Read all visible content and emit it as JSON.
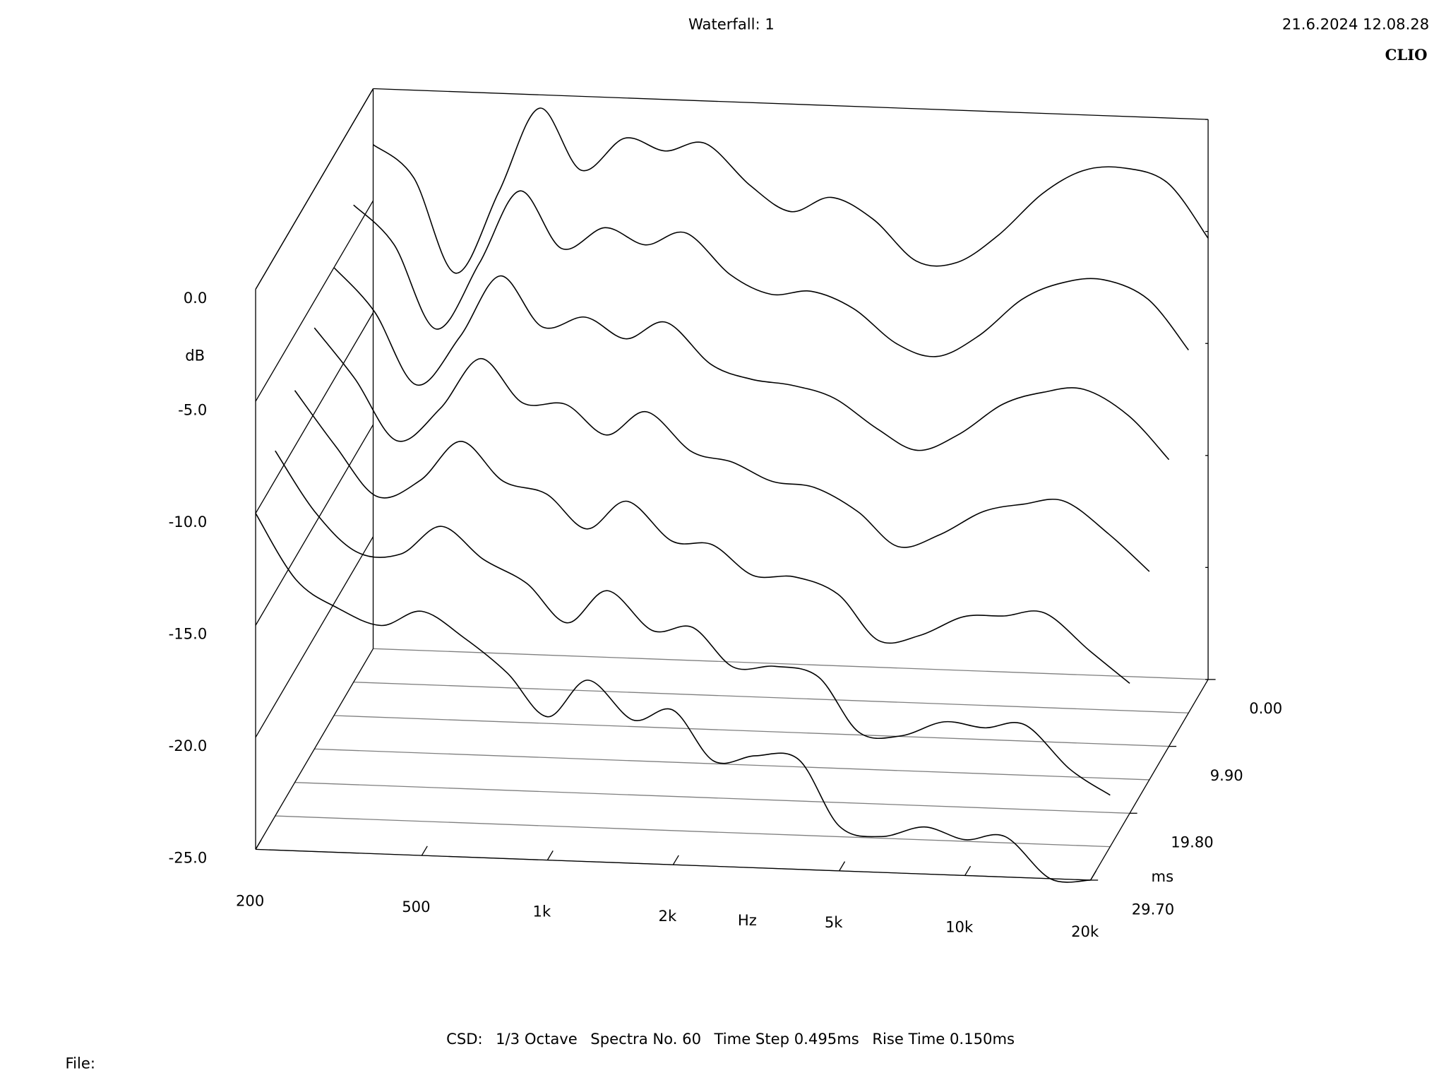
{
  "chart_data": {
    "type": "waterfall",
    "title": "Waterfall: 1",
    "timestamp": "21.6.2024 12.08.28",
    "brand": "CLIO",
    "xlabel": "Hz",
    "ylabel": "dB",
    "zlabel": "ms",
    "x_scale": "log",
    "color": "#000000",
    "x": [
      200,
      250,
      315,
      400,
      500,
      630,
      800,
      1000,
      1250,
      1600,
      2000,
      2500,
      3150,
      4000,
      5000,
      6300,
      8000,
      10000,
      12500,
      16000,
      20000
    ],
    "xlim": [
      200,
      20000
    ],
    "xticks": [
      200,
      500,
      {
        "value": 1000,
        "label": "1k"
      },
      {
        "value": 2000,
        "label": "2k"
      },
      {
        "value": 5000,
        "label": "5k"
      },
      {
        "value": 10000,
        "label": "10k"
      },
      {
        "value": 20000,
        "label": "20k"
      }
    ],
    "ylim": [
      -25,
      0
    ],
    "yticks": [
      {
        "value": 0,
        "label": "0.0"
      },
      {
        "value": -5,
        "label": "-5.0"
      },
      {
        "value": -10,
        "label": "-10.0"
      },
      {
        "value": -15,
        "label": "-15.0"
      },
      {
        "value": -20,
        "label": "-20.0"
      },
      {
        "value": -25,
        "label": "-25.0"
      }
    ],
    "zlim": [
      0,
      29.7
    ],
    "zticks": [
      {
        "value": 0,
        "label": "0.00"
      },
      {
        "value": 9.9,
        "label": "9.90"
      },
      {
        "value": 19.8,
        "label": "19.80"
      },
      {
        "value": 29.7,
        "label": "29.70"
      }
    ],
    "slices": [
      {
        "time": 0,
        "values": [
          -2.5,
          -3.9,
          -8.1,
          -4.4,
          -0.6,
          -3.3,
          -1.8,
          -2.3,
          -1.9,
          -3.7,
          -4.8,
          -4.1,
          -5.0,
          -6.8,
          -6.8,
          -5.5,
          -3.6,
          -2.5,
          -2.3,
          -2.9,
          -5.3
        ]
      },
      {
        "time": 4.95,
        "values": [
          -3.7,
          -5.4,
          -9.1,
          -6.1,
          -2.8,
          -5.3,
          -4.3,
          -5.0,
          -4.4,
          -6.2,
          -7.0,
          -6.8,
          -7.5,
          -9.0,
          -9.5,
          -8.5,
          -6.8,
          -6.0,
          -5.8,
          -6.6,
          -8.8
        ]
      },
      {
        "time": 9.9,
        "values": [
          -5.0,
          -6.9,
          -10.1,
          -7.9,
          -5.1,
          -7.3,
          -6.8,
          -7.7,
          -6.9,
          -8.7,
          -9.3,
          -9.5,
          -10.0,
          -11.3,
          -12.2,
          -11.4,
          -10.0,
          -9.4,
          -9.2,
          -10.3,
          -12.2
        ]
      },
      {
        "time": 14.85,
        "values": [
          -6.2,
          -8.4,
          -11.1,
          -9.6,
          -7.3,
          -9.2,
          -9.2,
          -10.5,
          -9.4,
          -11.1,
          -11.5,
          -12.3,
          -12.5,
          -13.5,
          -15.0,
          -14.4,
          -13.3,
          -12.9,
          -12.7,
          -14.1,
          -15.7
        ]
      },
      {
        "time": 19.8,
        "values": [
          -7.5,
          -9.9,
          -12.1,
          -11.3,
          -9.5,
          -11.2,
          -11.7,
          -13.2,
          -11.9,
          -13.6,
          -13.7,
          -15.0,
          -15.0,
          -15.7,
          -17.7,
          -17.4,
          -16.5,
          -16.4,
          -16.2,
          -17.8,
          -19.2
        ]
      },
      {
        "time": 24.75,
        "values": [
          -8.7,
          -11.4,
          -13.1,
          -13.1,
          -11.8,
          -13.2,
          -14.2,
          -15.9,
          -14.4,
          -16.1,
          -15.9,
          -17.6,
          -17.5,
          -17.9,
          -20.3,
          -20.4,
          -19.7,
          -19.9,
          -19.7,
          -21.6,
          -22.7
        ]
      },
      {
        "time": 29.7,
        "values": [
          -10.0,
          -12.9,
          -14.1,
          -14.8,
          -14.1,
          -15.2,
          -16.7,
          -18.6,
          -16.9,
          -18.6,
          -18.1,
          -20.3,
          -20.0,
          -20.1,
          -23.0,
          -23.4,
          -22.9,
          -23.4,
          -23.2,
          -25.0,
          -25.0
        ]
      }
    ],
    "footer": [
      "CSD:",
      "1/3 Octave",
      "Spectra No. 60",
      "Time Step 0.495ms",
      "Rise Time 0.150ms"
    ],
    "file_label": "File:"
  }
}
